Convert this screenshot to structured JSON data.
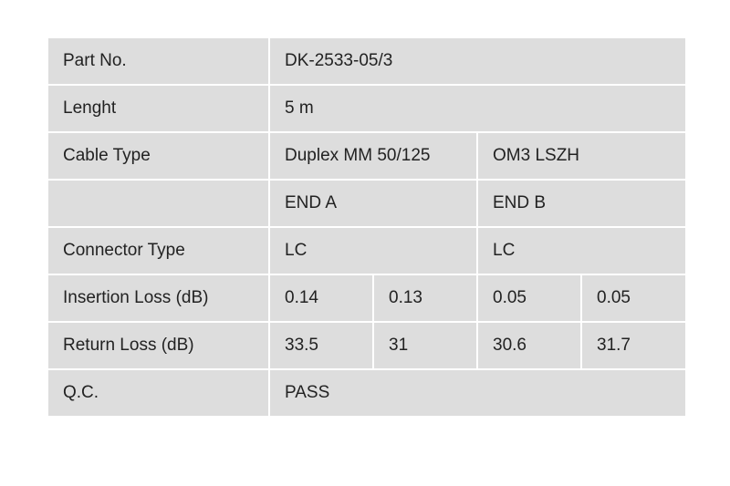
{
  "table": {
    "rows": [
      [
        "Part No.",
        "DK-2533-05/3"
      ],
      [
        "Lenght",
        "5 m"
      ],
      [
        "Cable Type",
        "Duplex MM 50/125",
        "OM3 LSZH"
      ],
      [
        "END A",
        "END B"
      ],
      [
        "Connector Type",
        "LC",
        "LC"
      ],
      [
        "Insertion Loss (dB)",
        "0.14",
        "0.13",
        "0.05",
        "0.05"
      ],
      [
        "Return Loss (dB)",
        "33.5",
        "31",
        "30.6",
        "31.7"
      ],
      [
        "Q.C.",
        "PASS"
      ]
    ]
  }
}
